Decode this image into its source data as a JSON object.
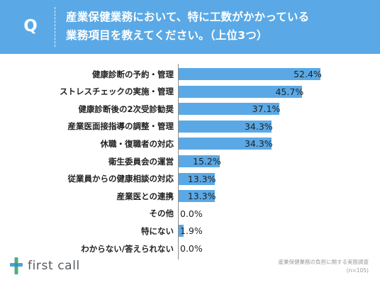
{
  "header": {
    "badge": "Q",
    "question_line1": "産業保健業務において、特に工数がかかっている",
    "question_line2": "業務項目を教えてください。（上位3つ）"
  },
  "colors": {
    "accent": "#5aa9e6",
    "text": "#222222"
  },
  "chart_data": {
    "type": "bar",
    "orientation": "horizontal",
    "categories": [
      "健康診断の予約・管理",
      "ストレスチェックの実施・管理",
      "健康診断後の2次受診勧奨",
      "産業医面接指導の調整・管理",
      "休職・復職者の対応",
      "衛生委員会の運営",
      "従業員からの健康相談の対応",
      "産業医との連携",
      "その他",
      "特にない",
      "わからない/答えられない"
    ],
    "values": [
      52.4,
      45.7,
      37.1,
      34.3,
      34.3,
      15.2,
      13.3,
      13.3,
      0.0,
      1.9,
      0.0
    ],
    "value_labels": [
      "52.4%",
      "45.7%",
      "37.1%",
      "34.3%",
      "34.3%",
      "15.2%",
      "13.3%",
      "13.3%",
      "0.0%",
      "1.9%",
      "0.0%"
    ],
    "unit": "%",
    "xlim": [
      0,
      55
    ],
    "grid": false,
    "legend": "none"
  },
  "source": {
    "line1": "産業保健業務の負担に関する実態調査",
    "line2": "(n=105)"
  },
  "logo": {
    "text": "first call",
    "icon": "first-call-cross-icon"
  }
}
